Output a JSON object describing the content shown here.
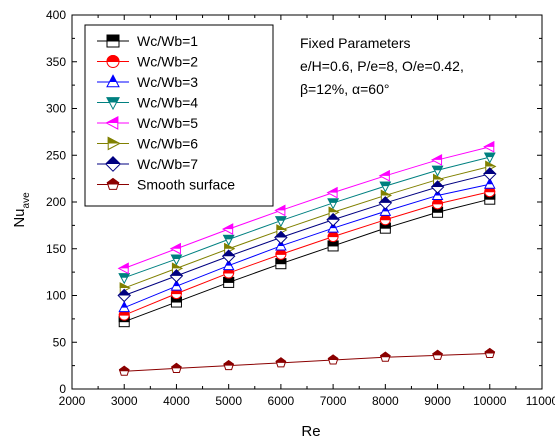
{
  "chart_data": {
    "type": "line",
    "title": "",
    "xlabel": "Re",
    "ylabel": "Nu",
    "ylabel_subscript": "ave",
    "xlim": [
      2000,
      11000
    ],
    "ylim": [
      0,
      400
    ],
    "x_ticks": [
      2000,
      3000,
      4000,
      5000,
      6000,
      7000,
      8000,
      9000,
      10000,
      11000
    ],
    "y_ticks": [
      0,
      50,
      100,
      150,
      200,
      250,
      300,
      350,
      400
    ],
    "grid": false,
    "legend_position": "top-left",
    "annotation_lines": [
      "Fixed Parameters",
      "e/H=0.6, P/e=8, O/e=0.42,",
      "β=12%, α=60°"
    ],
    "x": [
      3000,
      4000,
      5000,
      6000,
      7000,
      8000,
      9000,
      10000
    ],
    "series": [
      {
        "name": "Wc/Wb=1",
        "color": "#000000",
        "marker": "square",
        "values": [
          72,
          93,
          114,
          134,
          153,
          172,
          189,
          203
        ]
      },
      {
        "name": "Wc/Wb=2",
        "color": "#ff0000",
        "marker": "circle",
        "values": [
          79,
          102,
          124,
          144,
          163,
          181,
          198,
          211
        ]
      },
      {
        "name": "Wc/Wb=3",
        "color": "#0000ff",
        "marker": "triangle-up",
        "values": [
          87,
          110,
          132,
          153,
          172,
          190,
          207,
          219
        ]
      },
      {
        "name": "Wc/Wb=4",
        "color": "#008080",
        "marker": "triangle-down",
        "values": [
          119,
          139,
          160,
          180,
          199,
          217,
          234,
          248
        ]
      },
      {
        "name": "Wc/Wb=5",
        "color": "#ff00ff",
        "marker": "triangle-left",
        "values": [
          129,
          150,
          171,
          191,
          210,
          228,
          245,
          259
        ]
      },
      {
        "name": "Wc/Wb=6",
        "color": "#808000",
        "marker": "triangle-right",
        "values": [
          108,
          129,
          150,
          170,
          189,
          207,
          224,
          238
        ]
      },
      {
        "name": "Wc/Wb=7",
        "color": "#000080",
        "marker": "diamond",
        "values": [
          100,
          121,
          142,
          162,
          181,
          199,
          216,
          230
        ]
      },
      {
        "name": "Smooth surface",
        "color": "#8b0000",
        "marker": "pentagon",
        "values": [
          19,
          22,
          25,
          28,
          31,
          34,
          36,
          38
        ]
      }
    ]
  }
}
